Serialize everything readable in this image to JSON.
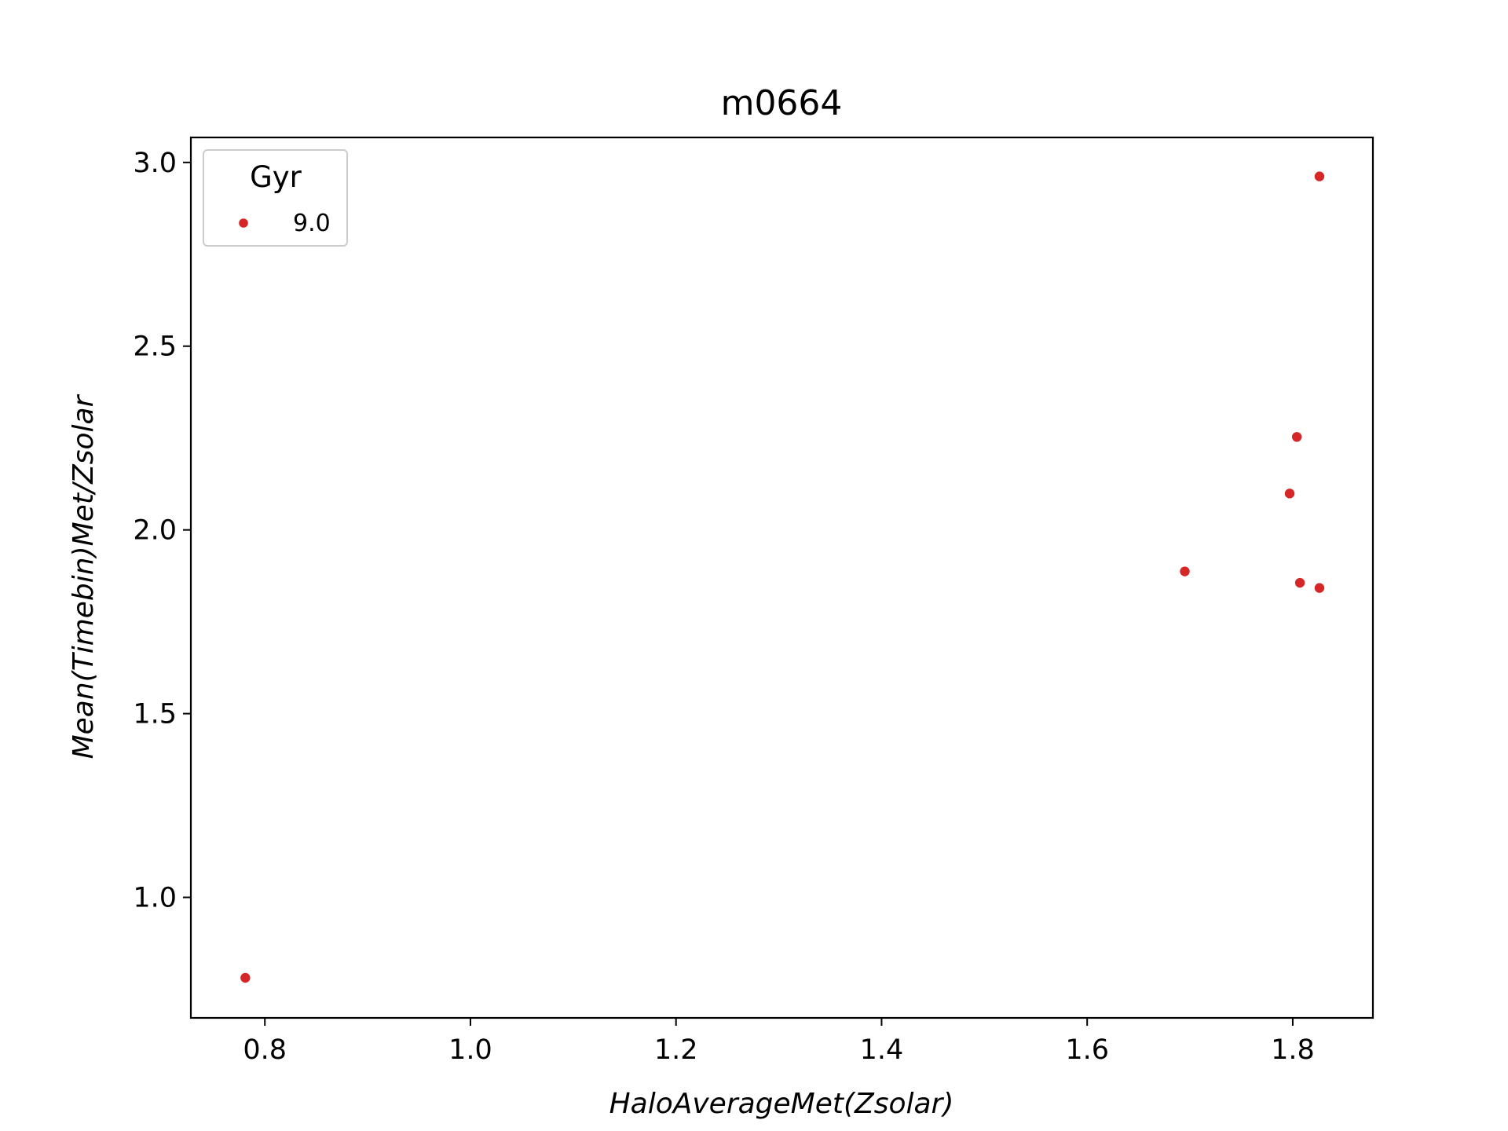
{
  "chart_data": {
    "type": "scatter",
    "title": "m0664",
    "xlabel": "HaloAverageMet(Zsolar)",
    "ylabel": "Mean(Timebin)Met/Zsolar",
    "xlim": [
      0.728,
      1.878
    ],
    "ylim": [
      0.672,
      3.068
    ],
    "xticks": [
      0.8,
      1.0,
      1.2,
      1.4,
      1.6,
      1.8
    ],
    "xtick_labels": [
      "0.8",
      "1.0",
      "1.2",
      "1.4",
      "1.6",
      "1.8"
    ],
    "yticks": [
      1.0,
      1.5,
      2.0,
      2.5,
      3.0
    ],
    "ytick_labels": [
      "1.0",
      "1.5",
      "2.0",
      "2.5",
      "3.0"
    ],
    "grid": false,
    "legend": {
      "title": "Gyr",
      "placement": "top-left"
    },
    "series": [
      {
        "name": "9.0",
        "color": "#d62728",
        "points": [
          {
            "x": 0.781,
            "y": 0.781
          },
          {
            "x": 1.695,
            "y": 1.887
          },
          {
            "x": 1.797,
            "y": 2.099
          },
          {
            "x": 1.804,
            "y": 2.253
          },
          {
            "x": 1.807,
            "y": 1.856
          },
          {
            "x": 1.826,
            "y": 1.842
          },
          {
            "x": 1.826,
            "y": 2.962
          }
        ]
      }
    ]
  }
}
